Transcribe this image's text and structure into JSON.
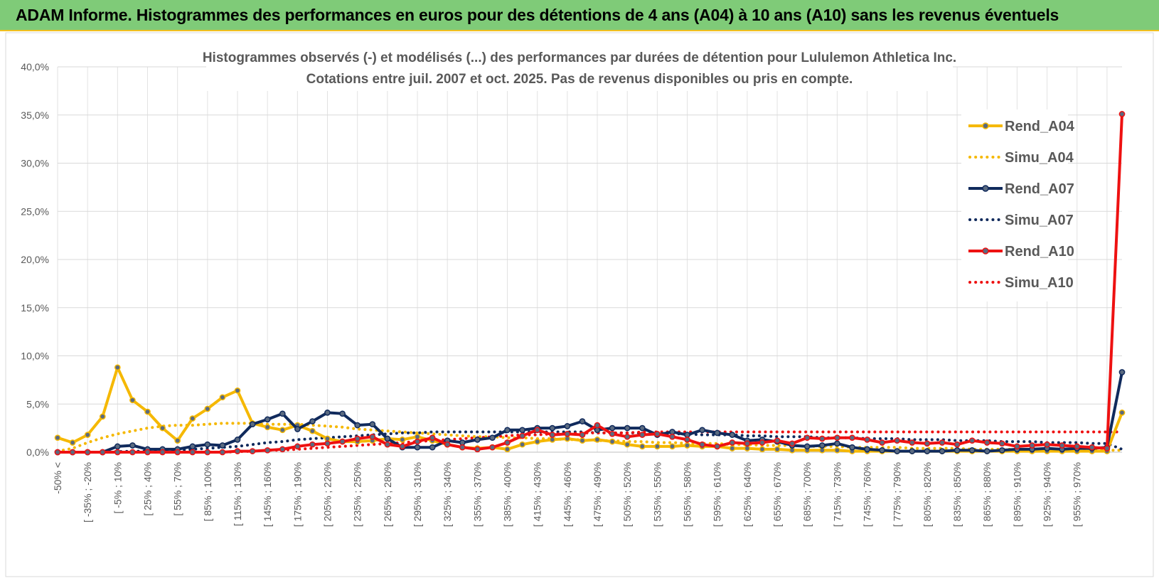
{
  "banner": {
    "title": "ADAM Informe. Histogrammes des performances en euros pour des détentions de 4 ans (A04) à 10 ans (A10) sans les revenus éventuels"
  },
  "chart_data": {
    "type": "line",
    "title": "Histogrammes observés (-) et modélisés (...) des performances par durées de détention pour Lululemon Athletica Inc.",
    "subtitle": "Cotations entre juil. 2007 et oct. 2025. Pas de revenus disponibles ou pris en compte.",
    "ylim": [
      0,
      40
    ],
    "y_ticks": [
      "0,0%",
      "5,0%",
      "10,0%",
      "15,0%",
      "20,0%",
      "25,0%",
      "30,0%",
      "35,0%",
      "40,0%"
    ],
    "x_labels": [
      "-50% <",
      "[ -35% ; -20%",
      "[ -5% ; 10%",
      "[ 25% ; 40%",
      "[ 55% ; 70%",
      "[ 85% ; 100%",
      "[ 115% ; 130%",
      "[ 145% ; 160%",
      "[ 175% ; 190%",
      "[ 205% ; 220%",
      "[ 235% ; 250%",
      "[ 265% ; 280%",
      "[ 295% ; 310%",
      "[ 325% ; 340%",
      "[ 355% ; 370%",
      "[ 385% ; 400%",
      "[ 415% ; 430%",
      "[ 445% ; 460%",
      "[ 475% ; 490%",
      "[ 505% ; 520%",
      "[ 535% ; 550%",
      "[ 565% ; 580%",
      "[ 595% ; 610%",
      "[ 625% ; 640%",
      "[ 655% ; 670%",
      "[ 685% ; 700%",
      "[ 715% ; 730%",
      "[ 745% ; 760%",
      "[ 775% ; 790%",
      "[ 805% ; 820%",
      "[ 835% ; 850%",
      "[ 865% ; 880%",
      "[ 895% ; 910%",
      "[ 925% ; 940%",
      "[ 955% ; 970%"
    ],
    "legend_position": "right",
    "grid": true,
    "series": [
      {
        "name": "Rend_A04",
        "style": "solid",
        "color": "#f5b800",
        "values": [
          1.5,
          1.0,
          1.8,
          3.7,
          8.8,
          5.4,
          4.2,
          2.5,
          1.2,
          3.5,
          4.5,
          5.7,
          6.4,
          3.0,
          2.6,
          2.3,
          2.8,
          2.2,
          1.4,
          1.1,
          1.1,
          1.2,
          1.4,
          1.3,
          1.6,
          1.2,
          0.8,
          0.5,
          0.4,
          0.5,
          0.3,
          0.8,
          1.1,
          1.3,
          1.4,
          1.2,
          1.3,
          1.1,
          0.8,
          0.6,
          0.6,
          0.6,
          0.7,
          0.6,
          0.6,
          0.4,
          0.4,
          0.3,
          0.3,
          0.2,
          0.2,
          0.2,
          0.2,
          0.1,
          0.1,
          0.1,
          0.1,
          0.1,
          0.1,
          0.1,
          0.1,
          0.1,
          0.1,
          0.1,
          0.1,
          0.1,
          0.1,
          0.1,
          0.1,
          0.1,
          0.1,
          4.1
        ]
      },
      {
        "name": "Simu_A04",
        "style": "dotted",
        "color": "#f5b800",
        "values": [
          0.1,
          0.4,
          1.0,
          1.5,
          1.9,
          2.2,
          2.5,
          2.7,
          2.8,
          2.8,
          2.9,
          3.0,
          3.0,
          3.0,
          2.9,
          2.9,
          2.9,
          2.8,
          2.7,
          2.6,
          2.4,
          2.3,
          2.2,
          2.1,
          2.0,
          1.9,
          1.8,
          1.7,
          1.6,
          1.6,
          1.5,
          1.5,
          1.4,
          1.4,
          1.3,
          1.3,
          1.2,
          1.2,
          1.1,
          1.1,
          1.0,
          1.0,
          0.9,
          0.9,
          0.9,
          0.8,
          0.8,
          0.7,
          0.7,
          0.7,
          0.6,
          0.6,
          0.6,
          0.5,
          0.5,
          0.5,
          0.5,
          0.4,
          0.4,
          0.4,
          0.4,
          0.3,
          0.3,
          0.3,
          0.3,
          0.3,
          0.3,
          0.2,
          0.2,
          0.2,
          0.2,
          0.2
        ]
      },
      {
        "name": "Rend_A07",
        "style": "solid",
        "color": "#102a5c",
        "values": [
          0,
          0,
          0,
          0,
          0.6,
          0.7,
          0.3,
          0.3,
          0.3,
          0.6,
          0.8,
          0.7,
          1.3,
          2.9,
          3.4,
          4.0,
          2.4,
          3.2,
          4.1,
          4.0,
          2.8,
          2.9,
          1.4,
          0.5,
          0.5,
          0.5,
          1.2,
          1.0,
          1.3,
          1.5,
          2.3,
          2.3,
          2.5,
          2.5,
          2.7,
          3.2,
          2.3,
          2.5,
          2.5,
          2.5,
          1.8,
          2.1,
          1.8,
          2.3,
          2.0,
          1.8,
          1.2,
          1.3,
          1.1,
          0.7,
          0.6,
          0.7,
          0.9,
          0.5,
          0.3,
          0.2,
          0.1,
          0.1,
          0.1,
          0.1,
          0.2,
          0.2,
          0.1,
          0.2,
          0.3,
          0.3,
          0.4,
          0.3,
          0.4,
          0.4,
          0.5,
          8.3
        ]
      },
      {
        "name": "Simu_A07",
        "style": "dotted",
        "color": "#102a5c",
        "values": [
          0,
          0,
          0,
          0,
          0.05,
          0.1,
          0.1,
          0.1,
          0.2,
          0.3,
          0.4,
          0.5,
          0.6,
          0.8,
          1.0,
          1.1,
          1.3,
          1.4,
          1.5,
          1.6,
          1.7,
          1.8,
          1.9,
          2.0,
          2.0,
          2.1,
          2.1,
          2.1,
          2.1,
          2.1,
          2.1,
          2.1,
          2.1,
          2.1,
          2.1,
          2.1,
          2.0,
          2.0,
          2.0,
          2.0,
          1.9,
          1.9,
          1.9,
          1.8,
          1.8,
          1.8,
          1.7,
          1.7,
          1.6,
          1.6,
          1.6,
          1.5,
          1.5,
          1.5,
          1.4,
          1.4,
          1.4,
          1.3,
          1.3,
          1.3,
          1.2,
          1.2,
          1.2,
          1.1,
          1.1,
          1.1,
          1.0,
          1.0,
          1.0,
          0.9,
          0.9,
          0.3
        ]
      },
      {
        "name": "Rend_A10",
        "style": "solid",
        "color": "#ee1111",
        "values": [
          0,
          0,
          0,
          0,
          0,
          0,
          0,
          0,
          0,
          0,
          0,
          0,
          0.1,
          0.1,
          0.2,
          0.3,
          0.6,
          0.8,
          0.9,
          1.1,
          1.4,
          1.6,
          0.8,
          0.6,
          1.1,
          1.5,
          0.8,
          0.5,
          0.3,
          0.5,
          1.0,
          1.7,
          2.3,
          1.8,
          1.9,
          1.8,
          2.8,
          1.9,
          1.6,
          1.8,
          1.9,
          1.6,
          1.3,
          0.8,
          0.6,
          1.0,
          0.9,
          1.0,
          1.2,
          0.9,
          1.5,
          1.4,
          1.5,
          1.5,
          1.3,
          1.0,
          1.2,
          1.0,
          0.9,
          1.0,
          0.8,
          1.2,
          1.0,
          0.9,
          0.6,
          0.7,
          0.8,
          0.7,
          0.6,
          0.5,
          0.4,
          35.1
        ]
      },
      {
        "name": "Simu_A10",
        "style": "dotted",
        "color": "#ee1111",
        "values": [
          0,
          0,
          0,
          0,
          0,
          0,
          0,
          0,
          0,
          0,
          0,
          0,
          0.05,
          0.1,
          0.2,
          0.2,
          0.3,
          0.4,
          0.5,
          0.6,
          0.7,
          0.8,
          0.9,
          1.0,
          1.1,
          1.2,
          1.3,
          1.4,
          1.5,
          1.6,
          1.7,
          1.8,
          1.8,
          1.9,
          1.9,
          2.0,
          2.0,
          2.0,
          2.0,
          2.1,
          2.1,
          2.1,
          2.1,
          2.1,
          2.1,
          2.1,
          2.1,
          2.1,
          2.1,
          2.1,
          2.1,
          2.1,
          2.1,
          2.1,
          2.1,
          2.1,
          2.1,
          2.1,
          2.1,
          2.1,
          2.1,
          2.1,
          2.1,
          2.1,
          2.1,
          2.1,
          2.1,
          2.1,
          2.1,
          2.1,
          2.1,
          2.1
        ]
      }
    ]
  }
}
